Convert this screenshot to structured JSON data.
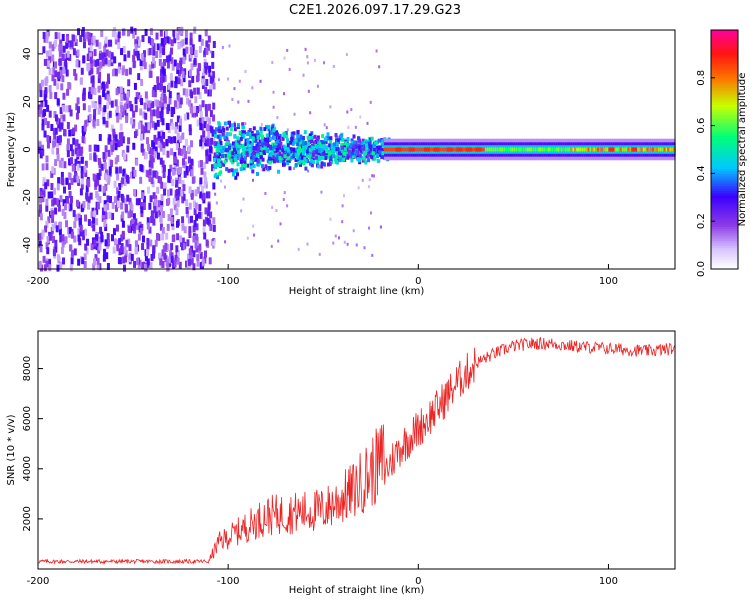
{
  "title": "C2E1.2026.097.17.29.G23",
  "chart_data": [
    {
      "type": "heatmap",
      "xlabel": "Height of straight line (km)",
      "ylabel": "Frequency (Hz)",
      "xlim": [
        -200,
        135
      ],
      "ylim": [
        -50,
        50
      ],
      "xticks": [
        -200,
        -100,
        0,
        100
      ],
      "yticks": [
        -40,
        -20,
        0,
        20,
        40
      ],
      "colorbar": {
        "label": "Normalized spectral amplitude",
        "range": [
          0,
          1
        ],
        "ticks": [
          0.0,
          0.2,
          0.4,
          0.6,
          0.8
        ],
        "colors": [
          "#ffffff",
          "#d4c2ff",
          "#8b2be2",
          "#3a00ff",
          "#00c8ff",
          "#00ff7a",
          "#c8ff00",
          "#ff6400",
          "#ff1010",
          "#ff00a0"
        ]
      },
      "regions": [
        {
          "name": "noise",
          "x": [
            -200,
            -108
          ],
          "freq_spread": 50,
          "level": 0.2
        },
        {
          "name": "transition",
          "x": [
            -108,
            -18
          ],
          "freq_spread": 12,
          "level": 0.45
        },
        {
          "name": "tone",
          "x": [
            -18,
            135
          ],
          "freq_center": 0,
          "freq_spread": 3,
          "level": 0.8
        }
      ]
    },
    {
      "type": "line",
      "xlabel": "Height of straight line (km)",
      "ylabel": "SNR (10 * v/v)",
      "xlim": [
        -200,
        135
      ],
      "ylim": [
        0,
        9500
      ],
      "xticks": [
        -200,
        -100,
        0,
        100
      ],
      "yticks": [
        2000,
        4000,
        6000,
        8000
      ],
      "color": "#ee2222",
      "envelope": {
        "x": [
          -200,
          -110,
          -105,
          -80,
          -50,
          -35,
          -20,
          -10,
          0,
          10,
          20,
          30,
          40,
          50,
          60,
          70,
          80,
          100,
          120,
          135
        ],
        "y": [
          300,
          300,
          900,
          1800,
          2000,
          2600,
          3600,
          4800,
          5600,
          6400,
          7400,
          8200,
          8600,
          8900,
          9000,
          9000,
          8900,
          8800,
          8700,
          8800
        ]
      }
    }
  ]
}
